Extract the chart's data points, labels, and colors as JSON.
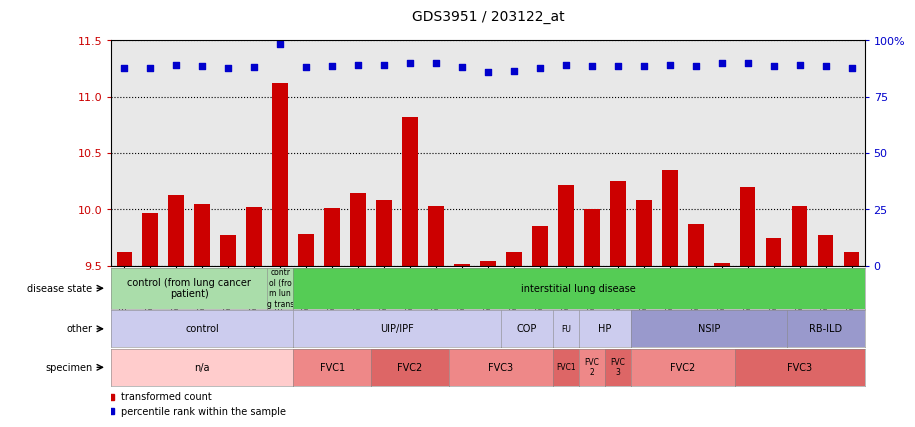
{
  "title": "GDS3951 / 203122_at",
  "samples": [
    "GSM533882",
    "GSM533883",
    "GSM533884",
    "GSM533885",
    "GSM533886",
    "GSM533887",
    "GSM533888",
    "GSM533889",
    "GSM533891",
    "GSM533892",
    "GSM533893",
    "GSM533896",
    "GSM533897",
    "GSM533899",
    "GSM533905",
    "GSM533909",
    "GSM533910",
    "GSM533904",
    "GSM533906",
    "GSM533890",
    "GSM533898",
    "GSM533908",
    "GSM533894",
    "GSM533895",
    "GSM533900",
    "GSM533901",
    "GSM533907",
    "GSM533902",
    "GSM533903"
  ],
  "bar_values": [
    9.62,
    9.97,
    10.13,
    10.05,
    9.77,
    10.02,
    11.12,
    9.78,
    10.01,
    10.15,
    10.08,
    10.82,
    10.03,
    9.52,
    9.54,
    9.62,
    9.85,
    10.22,
    10.0,
    10.25,
    10.08,
    10.35,
    9.87,
    9.53,
    10.2,
    9.75,
    10.03,
    9.77,
    9.62
  ],
  "dot_values_left": [
    11.25,
    11.25,
    11.28,
    11.27,
    11.25,
    11.26,
    11.47,
    11.26,
    11.27,
    11.28,
    11.28,
    11.3,
    11.3,
    11.26,
    11.22,
    11.23,
    11.25,
    11.28,
    11.27,
    11.27,
    11.27,
    11.28,
    11.27,
    11.3,
    11.3,
    11.27,
    11.28,
    11.27,
    11.25
  ],
  "bar_color": "#cc0000",
  "dot_color": "#0000cc",
  "ylim_left": [
    9.5,
    11.5
  ],
  "ylim_right": [
    0,
    100
  ],
  "yticks_left": [
    9.5,
    10.0,
    10.5,
    11.0,
    11.5
  ],
  "yticks_right": [
    0,
    25,
    50,
    75,
    100
  ],
  "disease_state_sections": [
    {
      "label": "control (from lung cancer\npatient)",
      "start": 0,
      "end": 6,
      "color": "#aaddaa"
    },
    {
      "label": "contr\nol (fro\nm lun\ng trans",
      "start": 6,
      "end": 7,
      "color": "#aaddaa"
    },
    {
      "label": "interstitial lung disease",
      "start": 7,
      "end": 29,
      "color": "#55cc55"
    }
  ],
  "other_sections": [
    {
      "label": "control",
      "start": 0,
      "end": 7,
      "color": "#ccccee"
    },
    {
      "label": "UIP/IPF",
      "start": 7,
      "end": 15,
      "color": "#ccccee"
    },
    {
      "label": "COP",
      "start": 15,
      "end": 17,
      "color": "#ccccee"
    },
    {
      "label": "FU",
      "start": 17,
      "end": 18,
      "color": "#ccccee"
    },
    {
      "label": "HP",
      "start": 18,
      "end": 20,
      "color": "#ccccee"
    },
    {
      "label": "NSIP",
      "start": 20,
      "end": 26,
      "color": "#9999cc"
    },
    {
      "label": "RB-ILD",
      "start": 26,
      "end": 29,
      "color": "#9999cc"
    }
  ],
  "specimen_sections": [
    {
      "label": "n/a",
      "start": 0,
      "end": 7,
      "color": "#ffcccc"
    },
    {
      "label": "FVC1",
      "start": 7,
      "end": 10,
      "color": "#ee8888"
    },
    {
      "label": "FVC2",
      "start": 10,
      "end": 13,
      "color": "#dd6666"
    },
    {
      "label": "FVC3",
      "start": 13,
      "end": 17,
      "color": "#ee8888"
    },
    {
      "label": "FVC1",
      "start": 17,
      "end": 18,
      "color": "#dd6666"
    },
    {
      "label": "FVC\n2",
      "start": 18,
      "end": 19,
      "color": "#ee8888"
    },
    {
      "label": "FVC\n3",
      "start": 19,
      "end": 20,
      "color": "#dd6666"
    },
    {
      "label": "FVC2",
      "start": 20,
      "end": 24,
      "color": "#ee8888"
    },
    {
      "label": "FVC3",
      "start": 24,
      "end": 29,
      "color": "#dd6666"
    }
  ],
  "row_labels": [
    "disease state",
    "other",
    "specimen"
  ]
}
